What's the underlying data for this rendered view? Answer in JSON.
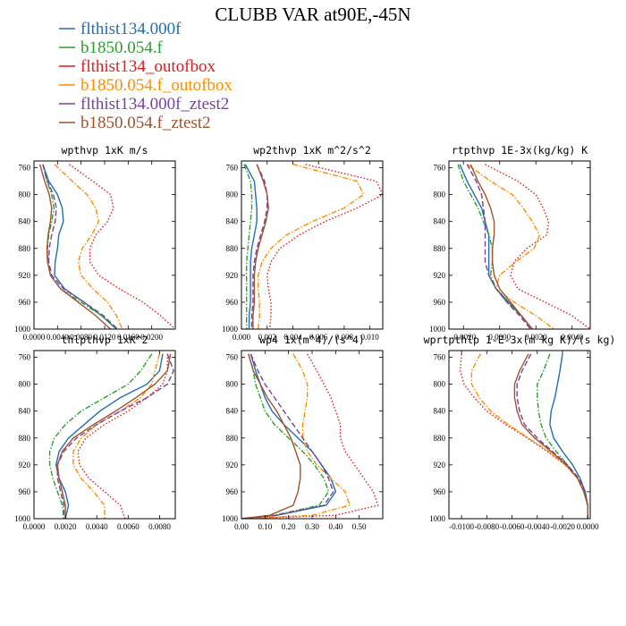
{
  "chart_data": {
    "title": "CLUBB VAR at90E,-45N",
    "legend": [
      {
        "name": "flthist134.000f",
        "color": "#1f6fb2",
        "dash": "solid"
      },
      {
        "name": "b1850.054.f",
        "color": "#2ca02c",
        "dash": "dashdot"
      },
      {
        "name": "flthist134_outofbox",
        "color": "#e41a1c",
        "dash": "dotted"
      },
      {
        "name": "b1850.054.f_outofbox",
        "color": "#ff8c00",
        "dash": "dashdot"
      },
      {
        "name": "flthist134.000f_ztest2",
        "color": "#7b3fa0",
        "dash": "dashed"
      },
      {
        "name": "b1850.054.f_ztest2",
        "color": "#a0522d",
        "dash": "solid"
      }
    ],
    "y_ticks": [
      "760",
      "800",
      "840",
      "880",
      "920",
      "960",
      "1000"
    ],
    "y_range": [
      750,
      1000
    ],
    "y_inverted": true,
    "panels": [
      {
        "type": "line",
        "title": "wpthvp  1xK m/s",
        "xlim": [
          0,
          0.024
        ],
        "x_ticks": [
          0,
          0.004,
          0.008,
          0.012,
          0.016,
          0.02
        ],
        "x_tick_labels": [
          "0.0000",
          "0.0040",
          "0.0080",
          "0.0120",
          "0.0160",
          "0.0200"
        ],
        "y": [
          755,
          780,
          800,
          820,
          840,
          860,
          880,
          900,
          920,
          940,
          960,
          980,
          1000
        ],
        "series": [
          [
            0.0015,
            0.0025,
            0.004,
            0.0048,
            0.005,
            0.0042,
            0.004,
            0.0036,
            0.0035,
            0.0052,
            0.0085,
            0.0115,
            0.014
          ],
          [
            0.0015,
            0.0022,
            0.003,
            0.0034,
            0.003,
            0.0025,
            0.0023,
            0.0024,
            0.0028,
            0.0045,
            0.008,
            0.0115,
            0.014
          ],
          [
            0.006,
            0.01,
            0.013,
            0.0135,
            0.0125,
            0.0105,
            0.0095,
            0.0095,
            0.011,
            0.0145,
            0.0185,
            0.0215,
            0.024
          ],
          [
            0.0035,
            0.0065,
            0.009,
            0.0105,
            0.011,
            0.0098,
            0.0082,
            0.0075,
            0.008,
            0.01,
            0.0125,
            0.014,
            0.015
          ],
          [
            0.0015,
            0.0023,
            0.0033,
            0.0038,
            0.0036,
            0.003,
            0.0026,
            0.0025,
            0.003,
            0.005,
            0.0085,
            0.0118,
            0.0142
          ],
          [
            0.001,
            0.0018,
            0.0026,
            0.003,
            0.0028,
            0.0024,
            0.0022,
            0.0023,
            0.0028,
            0.0045,
            0.0075,
            0.0105,
            0.013
          ]
        ]
      },
      {
        "type": "line",
        "title": "wp2thvp  1xK m^2/s^2",
        "xlim": [
          0,
          0.011
        ],
        "x_ticks": [
          0,
          0.002,
          0.004,
          0.006,
          0.008,
          0.01
        ],
        "x_tick_labels": [
          "0.000",
          "0.002",
          "0.004",
          "0.006",
          "0.008",
          "0.010"
        ],
        "y": [
          755,
          780,
          800,
          820,
          840,
          860,
          880,
          900,
          920,
          940,
          960,
          980,
          1000
        ],
        "series": [
          [
            0.0003,
            0.001,
            0.0011,
            0.0012,
            0.0012,
            0.001,
            0.0008,
            0.0007,
            0.0007,
            0.0007,
            0.0007,
            0.0006,
            0.0006
          ],
          [
            0.0002,
            0.0007,
            0.0008,
            0.0008,
            0.0007,
            0.0006,
            0.0005,
            0.0004,
            0.0004,
            0.0004,
            0.0004,
            0.0004,
            0.0004
          ],
          [
            0.005,
            0.0105,
            0.011,
            0.009,
            0.0065,
            0.0045,
            0.003,
            0.0023,
            0.002,
            0.0021,
            0.0023,
            0.0023,
            0.0022
          ],
          [
            0.004,
            0.009,
            0.0095,
            0.008,
            0.0055,
            0.0035,
            0.0023,
            0.0016,
            0.0013,
            0.0013,
            0.0014,
            0.0014,
            0.0013
          ],
          [
            0.0012,
            0.0018,
            0.002,
            0.002,
            0.0018,
            0.0015,
            0.0012,
            0.001,
            0.0009,
            0.0009,
            0.0009,
            0.0008,
            0.0008
          ],
          [
            0.0012,
            0.0017,
            0.002,
            0.0021,
            0.0019,
            0.0016,
            0.0013,
            0.0011,
            0.001,
            0.001,
            0.001,
            0.0009,
            0.0009
          ]
        ]
      },
      {
        "type": "line",
        "title": "rtpthvp  1E-3x(kg/kg) K",
        "xlim": [
          -0.0028,
          0.005
        ],
        "x_ticks": [
          -0.002,
          0,
          0.002,
          0.004
        ],
        "x_tick_labels": [
          "-0.0020",
          "0.0000",
          "0.0020",
          "0.0040"
        ],
        "y": [
          755,
          780,
          800,
          820,
          840,
          860,
          880,
          900,
          920,
          940,
          960,
          980,
          1000
        ],
        "series": [
          [
            -0.0022,
            -0.0018,
            -0.0014,
            -0.001,
            -0.0008,
            -0.0006,
            -0.0006,
            -0.0006,
            -0.0006,
            -0.0002,
            0.0005,
            0.0012,
            0.0018
          ],
          [
            -0.0023,
            -0.002,
            -0.0016,
            -0.0012,
            -0.0009,
            -0.0006,
            -0.0004,
            -0.0004,
            -0.0005,
            -0.0002,
            0.0004,
            0.0012,
            0.0018
          ],
          [
            -0.0008,
            0.001,
            0.002,
            0.0024,
            0.0027,
            0.0026,
            0.0015,
            0.0008,
            0.0006,
            0.001,
            0.0025,
            0.004,
            0.005
          ],
          [
            -0.0018,
            -0.0005,
            0.0007,
            0.0013,
            0.0018,
            0.0022,
            0.0019,
            0.0009,
            0.0,
            -0.0002,
            0.0008,
            0.002,
            0.003
          ],
          [
            -0.0018,
            -0.0013,
            -0.001,
            -0.0009,
            -0.0008,
            -0.0008,
            -0.0008,
            -0.0008,
            -0.0006,
            -0.0002,
            0.0004,
            0.0011,
            0.0017
          ],
          [
            -0.0016,
            -0.0012,
            -0.0008,
            -0.0005,
            -0.0003,
            -0.0003,
            -0.0004,
            -0.0004,
            -0.0003,
            0.0,
            0.0006,
            0.0012,
            0.0018
          ]
        ]
      },
      {
        "type": "line",
        "title": "thlpthvp  1xK^2",
        "xlim": [
          0,
          0.009
        ],
        "x_ticks": [
          0,
          0.002,
          0.004,
          0.006,
          0.008
        ],
        "x_tick_labels": [
          "0.0000",
          "0.0020",
          "0.0040",
          "0.0060",
          "0.0080"
        ],
        "y": [
          755,
          780,
          800,
          820,
          840,
          860,
          880,
          900,
          920,
          940,
          960,
          980,
          1000
        ],
        "series": [
          [
            0.0082,
            0.008,
            0.0072,
            0.0055,
            0.0042,
            0.0032,
            0.0022,
            0.0016,
            0.0014,
            0.0016,
            0.002,
            0.0022,
            0.002
          ],
          [
            0.0075,
            0.0068,
            0.006,
            0.0045,
            0.003,
            0.002,
            0.0013,
            0.001,
            0.001,
            0.0012,
            0.0015,
            0.0018,
            0.0019
          ],
          [
            0.0085,
            0.0085,
            0.0082,
            0.0072,
            0.006,
            0.0045,
            0.0033,
            0.0028,
            0.0029,
            0.0035,
            0.0045,
            0.0055,
            0.0058
          ],
          [
            0.008,
            0.0077,
            0.0075,
            0.0068,
            0.0055,
            0.004,
            0.003,
            0.0025,
            0.0025,
            0.003,
            0.0038,
            0.0045,
            0.0045
          ],
          [
            0.0085,
            0.0089,
            0.0085,
            0.0072,
            0.0055,
            0.004,
            0.0027,
            0.0019,
            0.0015,
            0.0015,
            0.0017,
            0.0019,
            0.0019
          ],
          [
            0.0087,
            0.0085,
            0.0077,
            0.0065,
            0.0052,
            0.0038,
            0.0025,
            0.0018,
            0.0015,
            0.0016,
            0.0018,
            0.002,
            0.002
          ]
        ]
      },
      {
        "type": "line",
        "title": "wp4  1x(m^4)/(s^4)",
        "xlim": [
          0,
          0.6
        ],
        "x_ticks": [
          0,
          0.1,
          0.2,
          0.3,
          0.4,
          0.5
        ],
        "x_tick_labels": [
          "0.00",
          "0.10",
          "0.20",
          "0.30",
          "0.40",
          "0.50"
        ],
        "y": [
          755,
          780,
          800,
          820,
          840,
          860,
          880,
          900,
          920,
          940,
          960,
          980,
          995,
          1000
        ],
        "series": [
          [
            0.04,
            0.06,
            0.08,
            0.1,
            0.13,
            0.18,
            0.24,
            0.3,
            0.34,
            0.38,
            0.4,
            0.36,
            0.15,
            0.0
          ],
          [
            0.03,
            0.05,
            0.06,
            0.08,
            0.1,
            0.14,
            0.2,
            0.26,
            0.31,
            0.35,
            0.37,
            0.33,
            0.14,
            0.0
          ],
          [
            0.28,
            0.32,
            0.35,
            0.38,
            0.4,
            0.42,
            0.42,
            0.44,
            0.48,
            0.52,
            0.56,
            0.58,
            0.4,
            0.0
          ],
          [
            0.22,
            0.26,
            0.28,
            0.28,
            0.27,
            0.26,
            0.26,
            0.28,
            0.32,
            0.38,
            0.44,
            0.46,
            0.3,
            0.0
          ],
          [
            0.04,
            0.07,
            0.1,
            0.14,
            0.18,
            0.22,
            0.26,
            0.3,
            0.34,
            0.37,
            0.39,
            0.35,
            0.15,
            0.0
          ],
          [
            0.03,
            0.05,
            0.08,
            0.11,
            0.15,
            0.18,
            0.21,
            0.23,
            0.25,
            0.25,
            0.24,
            0.22,
            0.12,
            0.0
          ]
        ]
      },
      {
        "type": "line",
        "title": "wprtpthlp  1-E-3x(m kg K)/(s kg)",
        "xlim": [
          -0.011,
          0.0002
        ],
        "x_ticks": [
          -0.01,
          -0.008,
          -0.006,
          -0.004,
          -0.002,
          0
        ],
        "x_tick_labels": [
          "-0.0100",
          "-0.0080",
          "-0.0060",
          "-0.0040",
          "-0.0020",
          "0.0000"
        ],
        "y": [
          755,
          780,
          800,
          820,
          840,
          860,
          880,
          900,
          920,
          940,
          960,
          980,
          1000
        ],
        "series": [
          [
            -0.002,
            -0.0022,
            -0.0024,
            -0.0026,
            -0.0029,
            -0.003,
            -0.0027,
            -0.002,
            -0.0012,
            -0.0006,
            -0.0002,
            0.0,
            0.0
          ],
          [
            -0.003,
            -0.0035,
            -0.004,
            -0.004,
            -0.0039,
            -0.0037,
            -0.0033,
            -0.0025,
            -0.0016,
            -0.0008,
            -0.0003,
            0.0,
            0.0
          ],
          [
            -0.01,
            -0.0101,
            -0.0098,
            -0.009,
            -0.008,
            -0.0065,
            -0.0048,
            -0.0032,
            -0.0018,
            -0.0008,
            -0.0003,
            0.0,
            0.0
          ],
          [
            -0.0085,
            -0.0092,
            -0.0092,
            -0.0086,
            -0.0077,
            -0.0063,
            -0.0047,
            -0.0031,
            -0.0018,
            -0.0008,
            -0.0003,
            0.0,
            0.0
          ],
          [
            -0.0045,
            -0.0052,
            -0.0056,
            -0.0056,
            -0.0054,
            -0.005,
            -0.004,
            -0.0028,
            -0.0016,
            -0.0007,
            -0.0002,
            0.0,
            0.0
          ],
          [
            -0.0047,
            -0.0054,
            -0.0058,
            -0.0058,
            -0.0056,
            -0.0052,
            -0.0042,
            -0.0029,
            -0.0017,
            -0.0008,
            -0.0003,
            0.0,
            0.0
          ]
        ]
      }
    ]
  }
}
